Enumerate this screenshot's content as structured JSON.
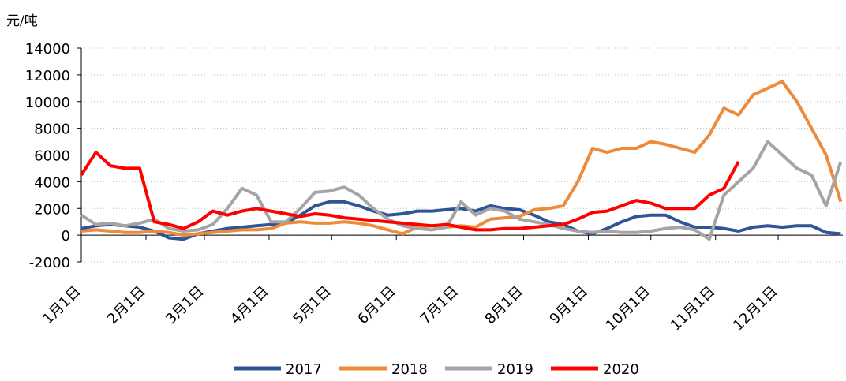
{
  "chart_data": {
    "type": "line",
    "y_label": "元/吨",
    "x": [
      0,
      7,
      14,
      21,
      28,
      35,
      42,
      49,
      56,
      63,
      70,
      77,
      84,
      91,
      98,
      105,
      112,
      119,
      126,
      133,
      140,
      147,
      154,
      161,
      168,
      175,
      182,
      189,
      196,
      203,
      210,
      217,
      224,
      231,
      238,
      245,
      252,
      259,
      266,
      273,
      280,
      287,
      294,
      301,
      308,
      315,
      322,
      329,
      336,
      343,
      350,
      357,
      364
    ],
    "xlim": [
      0,
      365
    ],
    "xticks": [
      {
        "value": 0,
        "label": "1月1日"
      },
      {
        "value": 31,
        "label": "2月1日"
      },
      {
        "value": 59,
        "label": "3月1日"
      },
      {
        "value": 90,
        "label": "4月1日"
      },
      {
        "value": 120,
        "label": "5月1日"
      },
      {
        "value": 151,
        "label": "6月1日"
      },
      {
        "value": 181,
        "label": "7月1日"
      },
      {
        "value": 212,
        "label": "8月1日"
      },
      {
        "value": 243,
        "label": "9月1日"
      },
      {
        "value": 273,
        "label": "10月1日"
      },
      {
        "value": 304,
        "label": "11月1日"
      },
      {
        "value": 334,
        "label": "12月1日"
      }
    ],
    "ylim": [
      -2000,
      14000
    ],
    "yticks": [
      -2000,
      0,
      2000,
      4000,
      6000,
      8000,
      10000,
      12000,
      14000
    ],
    "grid": true,
    "legend": "bottom",
    "series": [
      {
        "name": "2017",
        "color": "#2f5597",
        "values": [
          500,
          700,
          800,
          700,
          600,
          300,
          -200,
          -300,
          100,
          300,
          500,
          600,
          700,
          800,
          900,
          1500,
          2200,
          2500,
          2500,
          2200,
          1800,
          1500,
          1600,
          1800,
          1800,
          1900,
          2000,
          1800,
          2200,
          2000,
          1900,
          1500,
          1000,
          800,
          300,
          100,
          500,
          1000,
          1400,
          1500,
          1500,
          1000,
          600,
          600,
          500,
          300,
          600,
          700,
          600,
          700,
          700,
          200,
          100
        ]
      },
      {
        "name": "2018",
        "color": "#ed8b3b",
        "values": [
          300,
          400,
          300,
          200,
          200,
          300,
          200,
          0,
          100,
          200,
          300,
          400,
          400,
          500,
          900,
          1000,
          900,
          900,
          1000,
          900,
          700,
          400,
          100,
          600,
          700,
          600,
          700,
          600,
          1200,
          1300,
          1400,
          1900,
          2000,
          2200,
          4000,
          6500,
          6200,
          6500,
          6500,
          7000,
          6800,
          6500,
          6200,
          7500,
          9500,
          9000,
          10500,
          11000,
          11500,
          10000,
          8000,
          6000,
          2500
        ]
      },
      {
        "name": "2019",
        "color": "#a5a5a5",
        "values": [
          1500,
          800,
          900,
          700,
          900,
          1200,
          500,
          300,
          400,
          800,
          2000,
          3500,
          3000,
          1000,
          1000,
          2000,
          3200,
          3300,
          3600,
          3000,
          2000,
          1200,
          700,
          500,
          400,
          600,
          2500,
          1500,
          2000,
          1800,
          1200,
          1000,
          800,
          500,
          300,
          200,
          300,
          200,
          200,
          300,
          500,
          600,
          400,
          -300,
          3000,
          4000,
          5000,
          7000,
          6000,
          5000,
          4500,
          2200,
          5500
        ]
      },
      {
        "name": "2020",
        "color": "#ff0000",
        "values": [
          4500,
          6200,
          5200,
          5000,
          5000,
          1000,
          800,
          500,
          1000,
          1800,
          1500,
          1800,
          2000,
          1800,
          1600,
          1400,
          1600,
          1500,
          1300,
          1200,
          1100,
          1000,
          900,
          800,
          700,
          800,
          600,
          400,
          400,
          500,
          500,
          600,
          700,
          800,
          1200,
          1700,
          1800,
          2200,
          2600,
          2400,
          2000,
          2000,
          2000,
          3000,
          3500,
          5500,
          null,
          null,
          null,
          null,
          null,
          null,
          null
        ]
      }
    ]
  }
}
